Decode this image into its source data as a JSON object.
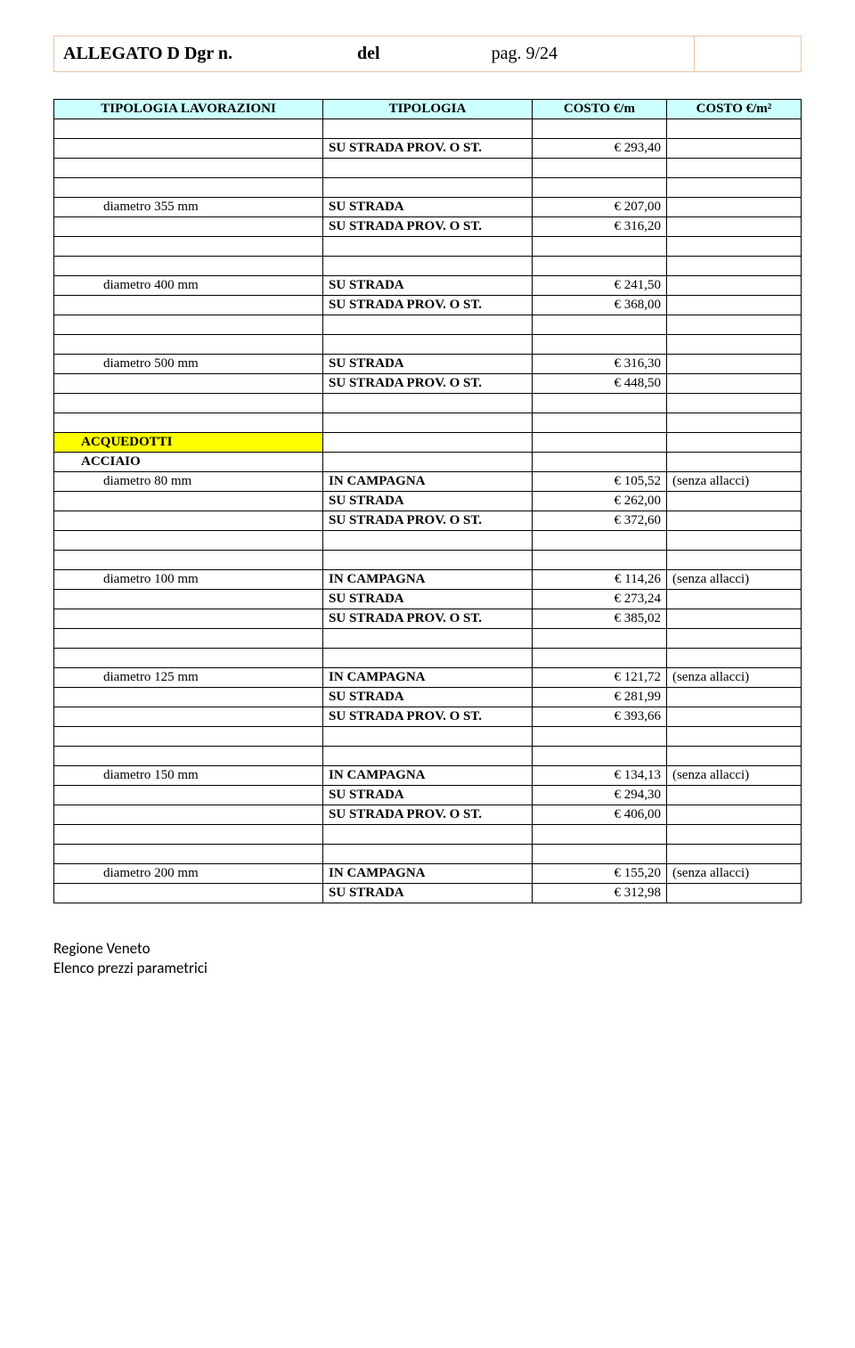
{
  "header": {
    "left_bold": "ALLEGATO D Dgr n.",
    "mid_bold": "del",
    "page_label": "pag. 9/24"
  },
  "table": {
    "headers": [
      "TIPOLOGIA LAVORAZIONI",
      "TIPOLOGIA",
      "COSTO €/m",
      "COSTO €/m²"
    ],
    "groups": [
      {
        "pre_rows": [
          {
            "b": "SU STRADA PROV. O ST.",
            "c": "€ 293,40"
          }
        ]
      },
      {
        "label": "diametro 355 mm",
        "rows": [
          {
            "b": "SU STRADA",
            "c": "€ 207,00"
          },
          {
            "b": "SU STRADA PROV. O ST.",
            "c": "€ 316,20"
          }
        ]
      },
      {
        "label": "diametro 400 mm",
        "rows": [
          {
            "b": "SU STRADA",
            "c": "€ 241,50"
          },
          {
            "b": "SU STRADA PROV. O ST.",
            "c": "€ 368,00"
          }
        ]
      },
      {
        "label": "diametro 500 mm",
        "rows": [
          {
            "b": "SU STRADA",
            "c": "€ 316,30"
          },
          {
            "b": "SU STRADA PROV. O ST.",
            "c": "€ 448,50"
          }
        ]
      }
    ],
    "section": {
      "title": "ACQUEDOTTI",
      "yellow": true,
      "subtitle": "ACCIAIO",
      "groups": [
        {
          "label": "diametro 80 mm",
          "rows": [
            {
              "b": "IN CAMPAGNA",
              "c": "€ 105,52",
              "d": "(senza allacci)"
            },
            {
              "b": "SU STRADA",
              "c": "€ 262,00"
            },
            {
              "b": "SU STRADA PROV. O ST.",
              "c": "€ 372,60"
            }
          ]
        },
        {
          "label": "diametro 100 mm",
          "rows": [
            {
              "b": "IN CAMPAGNA",
              "c": "€ 114,26",
              "d": "(senza allacci)"
            },
            {
              "b": "SU STRADA",
              "c": "€ 273,24"
            },
            {
              "b": "SU STRADA PROV. O ST.",
              "c": "€ 385,02"
            }
          ]
        },
        {
          "label": "diametro 125 mm",
          "rows": [
            {
              "b": "IN CAMPAGNA",
              "c": "€ 121,72",
              "d": "(senza allacci)"
            },
            {
              "b": "SU STRADA",
              "c": "€ 281,99"
            },
            {
              "b": "SU STRADA PROV. O ST.",
              "c": "€ 393,66"
            }
          ]
        },
        {
          "label": "diametro 150 mm",
          "rows": [
            {
              "b": "IN CAMPAGNA",
              "c": "€ 134,13",
              "d": "(senza allacci)"
            },
            {
              "b": "SU STRADA",
              "c": "€ 294,30"
            },
            {
              "b": "SU STRADA PROV. O ST.",
              "c": "€ 406,00"
            }
          ]
        },
        {
          "label": "diametro 200 mm",
          "rows": [
            {
              "b": "IN CAMPAGNA",
              "c": "€ 155,20",
              "d": "(senza allacci)"
            },
            {
              "b": "SU STRADA",
              "c": "€ 312,98"
            }
          ]
        }
      ]
    }
  },
  "footer": {
    "line1": "Regione Veneto",
    "line2": "Elenco prezzi parametrici"
  },
  "colors": {
    "header_border": "#e6c8a8",
    "table_header_bg": "#ccffff",
    "yellow": "#ffff00",
    "text": "#000000",
    "background": "#ffffff"
  }
}
